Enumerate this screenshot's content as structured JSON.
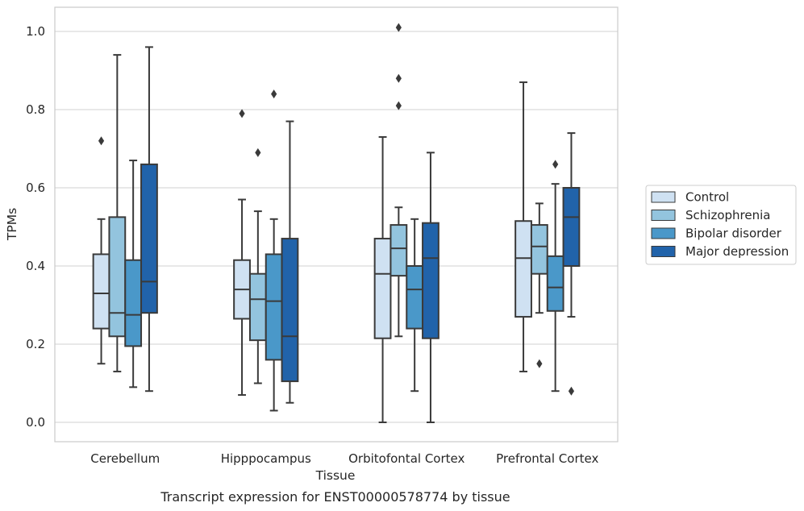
{
  "chart_data": {
    "type": "box",
    "caption": "Transcript expression for ENST00000578774 by tissue",
    "xlabel": "Tissue",
    "ylabel": "TPMs",
    "ylim": [
      -0.05,
      1.06
    ],
    "yticks": [
      0.0,
      0.2,
      0.4,
      0.6,
      0.8,
      1.0
    ],
    "ytick_labels": [
      "0.0",
      "0.2",
      "0.4",
      "0.6",
      "0.8",
      "1.0"
    ],
    "grid": true,
    "legend_position": "right",
    "categories": [
      "Cerebellum",
      "Hipppocampus",
      "Orbitofontal Cortex",
      "Prefrontal Cortex"
    ],
    "series": [
      {
        "name": "Control",
        "color": "#cfe1f2",
        "boxes": [
          {
            "whislo": 0.15,
            "q1": 0.24,
            "med": 0.33,
            "q3": 0.43,
            "whishi": 0.52,
            "fliers": [
              0.72
            ]
          },
          {
            "whislo": 0.07,
            "q1": 0.265,
            "med": 0.34,
            "q3": 0.415,
            "whishi": 0.57,
            "fliers": [
              0.79
            ]
          },
          {
            "whislo": 0.0,
            "q1": 0.215,
            "med": 0.38,
            "q3": 0.47,
            "whishi": 0.73,
            "fliers": []
          },
          {
            "whislo": 0.13,
            "q1": 0.27,
            "med": 0.42,
            "q3": 0.515,
            "whishi": 0.87,
            "fliers": []
          }
        ]
      },
      {
        "name": "Schizophrenia",
        "color": "#93c4de",
        "boxes": [
          {
            "whislo": 0.13,
            "q1": 0.22,
            "med": 0.28,
            "q3": 0.525,
            "whishi": 0.94,
            "fliers": []
          },
          {
            "whislo": 0.1,
            "q1": 0.21,
            "med": 0.315,
            "q3": 0.38,
            "whishi": 0.54,
            "fliers": [
              0.69
            ]
          },
          {
            "whislo": 0.22,
            "q1": 0.375,
            "med": 0.445,
            "q3": 0.505,
            "whishi": 0.55,
            "fliers": [
              0.88,
              0.81,
              1.01
            ]
          },
          {
            "whislo": 0.28,
            "q1": 0.38,
            "med": 0.45,
            "q3": 0.505,
            "whishi": 0.56,
            "fliers": [
              0.15
            ]
          }
        ]
      },
      {
        "name": "Bipolar disorder",
        "color": "#4a98c9",
        "boxes": [
          {
            "whislo": 0.09,
            "q1": 0.195,
            "med": 0.275,
            "q3": 0.415,
            "whishi": 0.67,
            "fliers": []
          },
          {
            "whislo": 0.03,
            "q1": 0.16,
            "med": 0.31,
            "q3": 0.43,
            "whishi": 0.52,
            "fliers": [
              0.84
            ]
          },
          {
            "whislo": 0.08,
            "q1": 0.24,
            "med": 0.34,
            "q3": 0.4,
            "whishi": 0.52,
            "fliers": []
          },
          {
            "whislo": 0.08,
            "q1": 0.285,
            "med": 0.345,
            "q3": 0.425,
            "whishi": 0.61,
            "fliers": [
              0.66
            ]
          }
        ]
      },
      {
        "name": "Major depression",
        "color": "#2163aa",
        "boxes": [
          {
            "whislo": 0.08,
            "q1": 0.28,
            "med": 0.36,
            "q3": 0.66,
            "whishi": 0.96,
            "fliers": []
          },
          {
            "whislo": 0.05,
            "q1": 0.105,
            "med": 0.22,
            "q3": 0.47,
            "whishi": 0.77,
            "fliers": []
          },
          {
            "whislo": 0.0,
            "q1": 0.215,
            "med": 0.42,
            "q3": 0.51,
            "whishi": 0.69,
            "fliers": []
          },
          {
            "whislo": 0.27,
            "q1": 0.4,
            "med": 0.525,
            "q3": 0.6,
            "whishi": 0.74,
            "fliers": [
              0.08
            ]
          }
        ]
      }
    ]
  }
}
